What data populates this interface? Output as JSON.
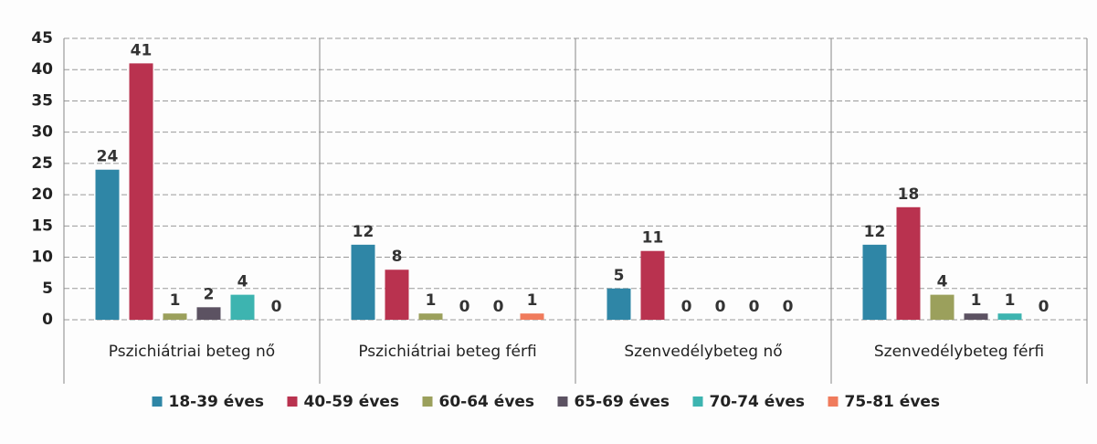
{
  "chart_data": {
    "type": "bar",
    "categories": [
      "Pszichiátriai beteg nő",
      "Pszichiátriai beteg férfi",
      "Szenvedélybeteg nő",
      "Szenvedélybeteg férfi"
    ],
    "series": [
      {
        "name": "18-39 éves",
        "color": "#2f86a6",
        "values": [
          24,
          12,
          5,
          12
        ]
      },
      {
        "name": "40-59 éves",
        "color": "#b9324f",
        "values": [
          41,
          8,
          11,
          18
        ]
      },
      {
        "name": "60-64 éves",
        "color": "#9ba05c",
        "values": [
          1,
          1,
          0,
          4
        ]
      },
      {
        "name": "65-69 éves",
        "color": "#5c5262",
        "values": [
          2,
          0,
          0,
          1
        ]
      },
      {
        "name": "70-74 éves",
        "color": "#3db4b0",
        "values": [
          4,
          0,
          0,
          1
        ]
      },
      {
        "name": "75-81 éves",
        "color": "#f07b5c",
        "values": [
          0,
          1,
          0,
          0
        ]
      }
    ],
    "ylim": [
      0,
      45
    ],
    "yticks": [
      0,
      5,
      10,
      15,
      20,
      25,
      30,
      35,
      40,
      45
    ],
    "grid": true,
    "legend": "bottom"
  }
}
